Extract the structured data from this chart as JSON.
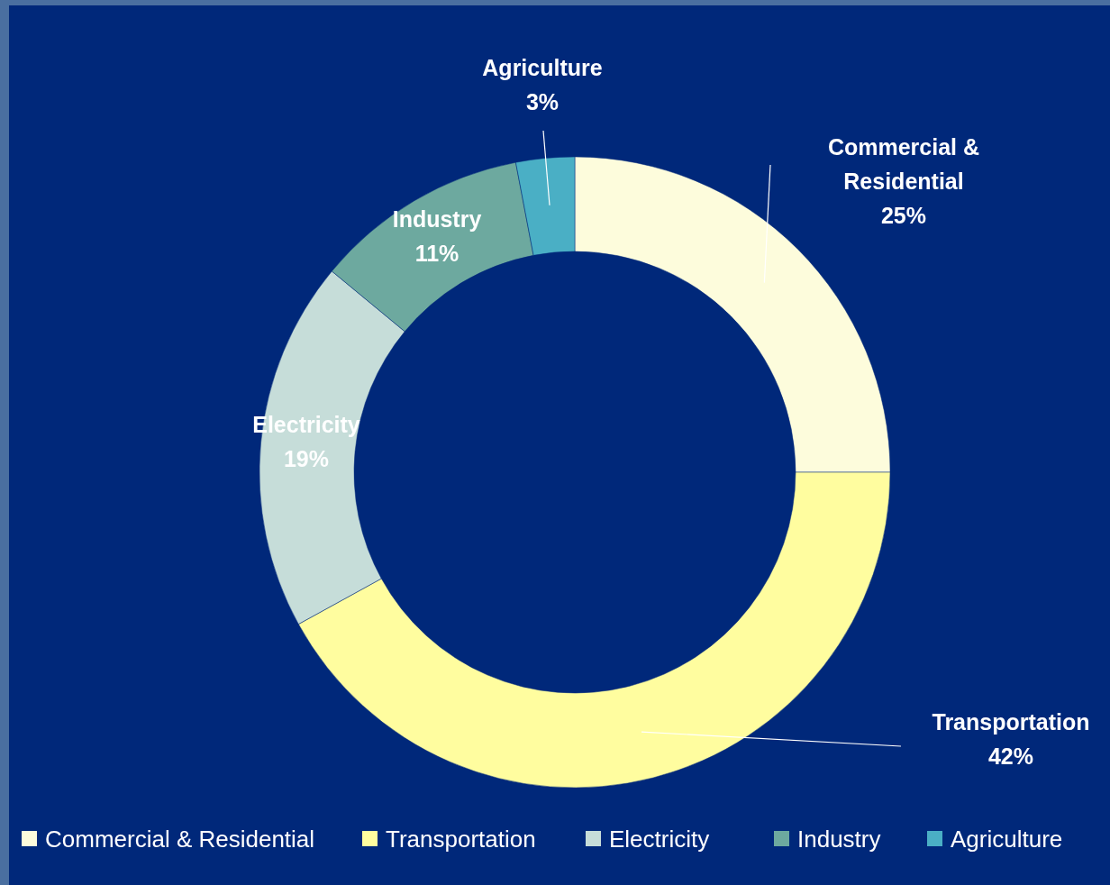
{
  "chart_data": {
    "type": "donut",
    "categories": [
      "Commercial & Residential",
      "Transportation",
      "Electricity",
      "Industry",
      "Agriculture"
    ],
    "values": [
      25,
      42,
      19,
      11,
      3
    ],
    "colors": [
      "#fdfcdc",
      "#fffd9f",
      "#c6ddd9",
      "#6da99f",
      "#4aafc5"
    ],
    "value_labels": [
      "25%",
      "42%",
      "19%",
      "11%",
      "3%"
    ],
    "legend": "bottom"
  }
}
